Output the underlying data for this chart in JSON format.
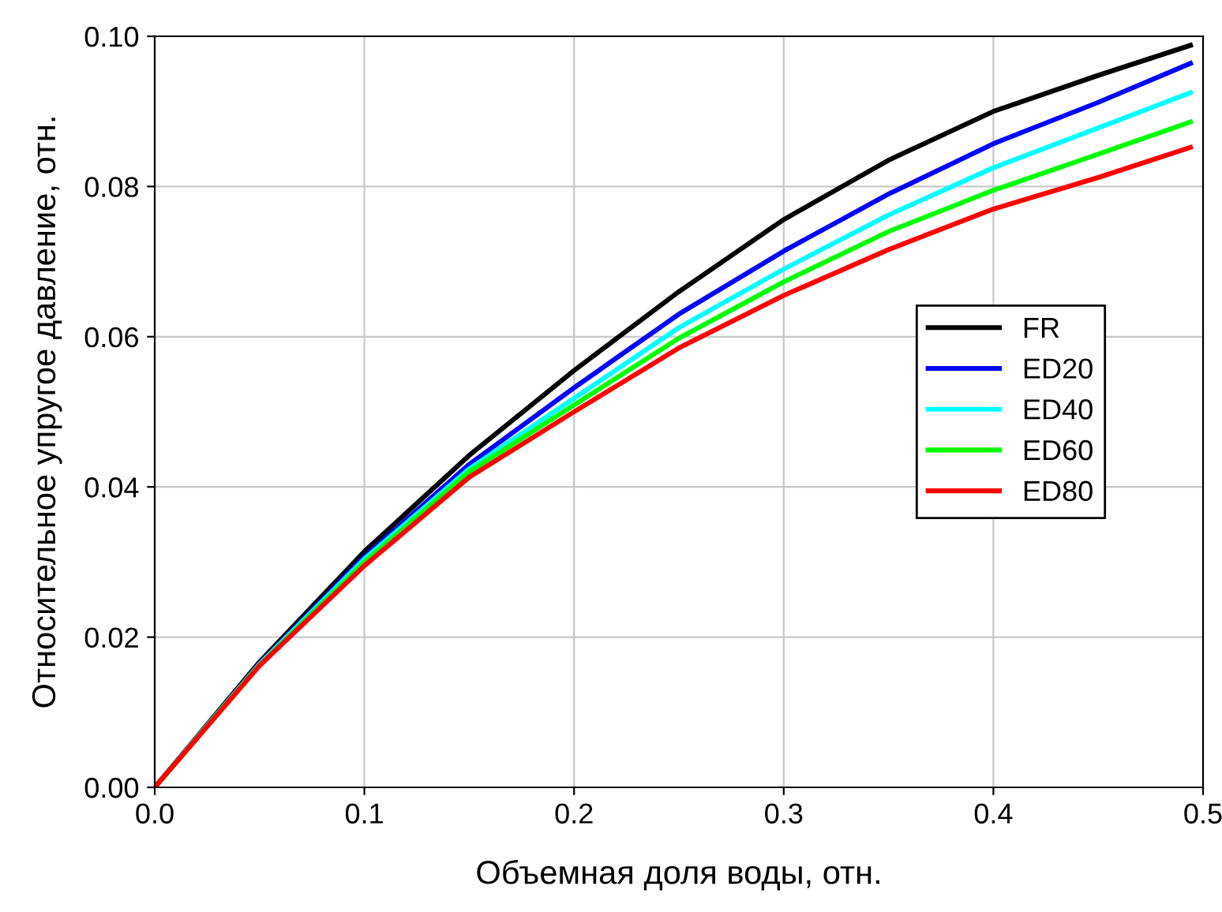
{
  "chart_data": {
    "type": "line",
    "xlabel": "Объемная доля воды, отн.",
    "ylabel": "Относительное упругое давление, отн.",
    "x": [
      0,
      0.05,
      0.1,
      0.15,
      0.2,
      0.25,
      0.3,
      0.35,
      0.4,
      0.45,
      0.494
    ],
    "series": [
      {
        "name": "FR",
        "color": "#000000",
        "values": [
          0,
          0.0167,
          0.0314,
          0.0442,
          0.0555,
          0.066,
          0.0756,
          0.0835,
          0.09,
          0.0948,
          0.0988
        ]
      },
      {
        "name": "ED20",
        "color": "#0000ff",
        "values": [
          0,
          0.0165,
          0.0307,
          0.043,
          0.0532,
          0.063,
          0.0714,
          0.079,
          0.0857,
          0.0912,
          0.0964
        ]
      },
      {
        "name": "ED40",
        "color": "#00ffff",
        "values": [
          0,
          0.0164,
          0.0304,
          0.0424,
          0.0518,
          0.0612,
          0.069,
          0.0762,
          0.0825,
          0.0878,
          0.0925
        ]
      },
      {
        "name": "ED60",
        "color": "#00ff00",
        "values": [
          0,
          0.0163,
          0.03,
          0.042,
          0.0509,
          0.0598,
          0.0673,
          0.074,
          0.0795,
          0.0843,
          0.0886
        ]
      },
      {
        "name": "ED80",
        "color": "#ff0000",
        "values": [
          0,
          0.0162,
          0.0295,
          0.0413,
          0.05,
          0.0585,
          0.0655,
          0.0716,
          0.077,
          0.0812,
          0.0852
        ]
      }
    ],
    "xlim": [
      0,
      0.5
    ],
    "ylim": [
      0,
      0.1
    ],
    "xticks": [
      {
        "value": 0,
        "label": "0.0"
      },
      0.1,
      0.2,
      0.3,
      0.4,
      0.5
    ],
    "yticks": [
      {
        "value": 0,
        "label": "0.00"
      },
      {
        "value": 0.02,
        "label": "0.02"
      },
      {
        "value": 0.04,
        "label": "0.04"
      },
      {
        "value": 0.06,
        "label": "0.06"
      },
      {
        "value": 0.08,
        "label": "0.08"
      },
      {
        "value": 0.1,
        "label": "0.10"
      }
    ],
    "grid": true,
    "legend": "right",
    "line_style": "solid",
    "marker": "none"
  }
}
